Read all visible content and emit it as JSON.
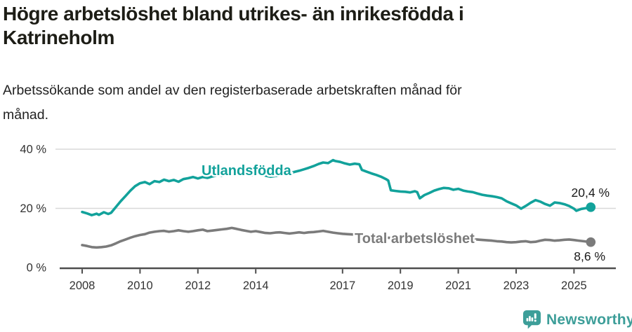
{
  "header": {
    "title": "Högre arbetslöshet bland utrikes- än inrikesfödda i\nKatrineholm",
    "subtitle": "Arbetssökande som andel av den registerbaserade arbetskraften månad för\nmånad."
  },
  "colors": {
    "accent_teal": "#12a29b",
    "line_gray": "#7b7b7b",
    "grid": "#d8d8d8",
    "axis": "#4d4d4d",
    "tick_text": "#333333",
    "value_text": "#1a1a1a",
    "brand_teal": "#3d9e99"
  },
  "branding": {
    "logo_text": "Newsworthy"
  },
  "chart_data": {
    "type": "line",
    "title": "Högre arbetslöshet bland utrikes- än inrikesfödda i Katrineholm",
    "subtitle": "Arbetssökande som andel av den registerbaserade arbetskraften månad för månad.",
    "xlabel": "",
    "ylabel": "",
    "grid": "horizontal-only",
    "legend_position": "inline-labels",
    "x_range": [
      2008,
      2025.58
    ],
    "ylim": [
      0,
      44
    ],
    "x_ticks": [
      2008,
      2010,
      2012,
      2014,
      2017,
      2019,
      2021,
      2023,
      2025
    ],
    "y_ticks": [
      {
        "value": 0,
        "label": "0 %"
      },
      {
        "value": 20,
        "label": "20 %"
      },
      {
        "value": 40,
        "label": "40 %"
      }
    ],
    "series": [
      {
        "name": "Utlandsfödda",
        "color": "#12a29b",
        "end_label": "20,4 %",
        "last_value": 20.4,
        "points": [
          [
            2008.0,
            18.8
          ],
          [
            2008.17,
            18.3
          ],
          [
            2008.33,
            17.7
          ],
          [
            2008.5,
            18.2
          ],
          [
            2008.58,
            17.8
          ],
          [
            2008.75,
            18.7
          ],
          [
            2008.9,
            18.1
          ],
          [
            2009.0,
            18.5
          ],
          [
            2009.17,
            20.5
          ],
          [
            2009.33,
            22.4
          ],
          [
            2009.5,
            24.2
          ],
          [
            2009.67,
            26.0
          ],
          [
            2009.83,
            27.5
          ],
          [
            2010.0,
            28.5
          ],
          [
            2010.17,
            28.9
          ],
          [
            2010.33,
            28.2
          ],
          [
            2010.5,
            29.2
          ],
          [
            2010.67,
            28.9
          ],
          [
            2010.83,
            29.7
          ],
          [
            2011.0,
            29.2
          ],
          [
            2011.17,
            29.6
          ],
          [
            2011.33,
            29.0
          ],
          [
            2011.5,
            29.9
          ],
          [
            2011.67,
            30.2
          ],
          [
            2011.83,
            30.6
          ],
          [
            2012.0,
            30.1
          ],
          [
            2012.17,
            30.6
          ],
          [
            2012.33,
            30.3
          ],
          [
            2012.5,
            30.8
          ],
          [
            2012.67,
            31.1
          ],
          [
            2012.83,
            31.0
          ],
          [
            2013.0,
            31.4
          ],
          [
            2013.17,
            31.8
          ],
          [
            2013.33,
            31.5
          ],
          [
            2013.5,
            31.8
          ],
          [
            2013.67,
            31.5
          ],
          [
            2013.83,
            31.2
          ],
          [
            2014.0,
            31.5
          ],
          [
            2014.17,
            31.8
          ],
          [
            2014.33,
            31.1
          ],
          [
            2014.5,
            30.7
          ],
          [
            2014.67,
            30.9
          ],
          [
            2014.83,
            31.1
          ],
          [
            2015.0,
            31.4
          ],
          [
            2015.17,
            31.9
          ],
          [
            2015.33,
            32.3
          ],
          [
            2015.5,
            32.7
          ],
          [
            2015.67,
            33.2
          ],
          [
            2015.83,
            33.7
          ],
          [
            2016.0,
            34.3
          ],
          [
            2016.17,
            35.0
          ],
          [
            2016.33,
            35.5
          ],
          [
            2016.5,
            35.3
          ],
          [
            2016.67,
            36.3
          ],
          [
            2016.75,
            36.0
          ],
          [
            2016.92,
            35.7
          ],
          [
            2017.08,
            35.2
          ],
          [
            2017.25,
            34.8
          ],
          [
            2017.42,
            35.1
          ],
          [
            2017.58,
            34.9
          ],
          [
            2017.67,
            33.0
          ],
          [
            2017.83,
            32.4
          ],
          [
            2018.0,
            31.8
          ],
          [
            2018.17,
            31.3
          ],
          [
            2018.33,
            30.7
          ],
          [
            2018.5,
            29.9
          ],
          [
            2018.58,
            29.4
          ],
          [
            2018.67,
            26.1
          ],
          [
            2018.83,
            25.9
          ],
          [
            2019.0,
            25.7
          ],
          [
            2019.17,
            25.6
          ],
          [
            2019.33,
            25.4
          ],
          [
            2019.5,
            25.8
          ],
          [
            2019.58,
            25.5
          ],
          [
            2019.67,
            23.4
          ],
          [
            2019.83,
            24.5
          ],
          [
            2020.0,
            25.2
          ],
          [
            2020.17,
            26.0
          ],
          [
            2020.33,
            26.5
          ],
          [
            2020.5,
            26.9
          ],
          [
            2020.67,
            26.8
          ],
          [
            2020.83,
            26.3
          ],
          [
            2021.0,
            26.6
          ],
          [
            2021.17,
            26.0
          ],
          [
            2021.33,
            25.7
          ],
          [
            2021.5,
            25.5
          ],
          [
            2021.67,
            25.0
          ],
          [
            2021.83,
            24.6
          ],
          [
            2022.0,
            24.3
          ],
          [
            2022.17,
            24.1
          ],
          [
            2022.33,
            23.8
          ],
          [
            2022.5,
            23.4
          ],
          [
            2022.67,
            22.4
          ],
          [
            2022.83,
            21.7
          ],
          [
            2023.0,
            21.0
          ],
          [
            2023.17,
            19.9
          ],
          [
            2023.33,
            20.8
          ],
          [
            2023.5,
            21.9
          ],
          [
            2023.67,
            22.8
          ],
          [
            2023.83,
            22.3
          ],
          [
            2024.0,
            21.5
          ],
          [
            2024.17,
            20.9
          ],
          [
            2024.33,
            22.0
          ],
          [
            2024.5,
            21.8
          ],
          [
            2024.67,
            21.4
          ],
          [
            2024.83,
            20.8
          ],
          [
            2025.0,
            19.9
          ],
          [
            2025.08,
            19.2
          ],
          [
            2025.25,
            19.8
          ],
          [
            2025.42,
            20.1
          ],
          [
            2025.58,
            20.4
          ]
        ]
      },
      {
        "name": "Total arbetslöshet",
        "color": "#7b7b7b",
        "end_label": "8,6 %",
        "last_value": 8.6,
        "points": [
          [
            2008.0,
            7.6
          ],
          [
            2008.17,
            7.3
          ],
          [
            2008.33,
            6.9
          ],
          [
            2008.5,
            6.8
          ],
          [
            2008.67,
            6.9
          ],
          [
            2008.83,
            7.1
          ],
          [
            2009.0,
            7.5
          ],
          [
            2009.17,
            8.2
          ],
          [
            2009.33,
            8.9
          ],
          [
            2009.5,
            9.5
          ],
          [
            2009.67,
            10.1
          ],
          [
            2009.83,
            10.6
          ],
          [
            2010.0,
            11.0
          ],
          [
            2010.17,
            11.3
          ],
          [
            2010.33,
            11.8
          ],
          [
            2010.5,
            12.1
          ],
          [
            2010.67,
            12.3
          ],
          [
            2010.83,
            12.4
          ],
          [
            2011.0,
            12.1
          ],
          [
            2011.17,
            12.3
          ],
          [
            2011.33,
            12.6
          ],
          [
            2011.5,
            12.3
          ],
          [
            2011.67,
            12.1
          ],
          [
            2011.83,
            12.3
          ],
          [
            2012.0,
            12.6
          ],
          [
            2012.17,
            12.8
          ],
          [
            2012.33,
            12.3
          ],
          [
            2012.5,
            12.5
          ],
          [
            2012.67,
            12.7
          ],
          [
            2012.83,
            12.9
          ],
          [
            2013.0,
            13.1
          ],
          [
            2013.17,
            13.4
          ],
          [
            2013.33,
            13.1
          ],
          [
            2013.5,
            12.7
          ],
          [
            2013.67,
            12.4
          ],
          [
            2013.83,
            12.1
          ],
          [
            2014.0,
            12.3
          ],
          [
            2014.17,
            12.0
          ],
          [
            2014.33,
            11.7
          ],
          [
            2014.5,
            11.6
          ],
          [
            2014.67,
            11.8
          ],
          [
            2014.83,
            11.9
          ],
          [
            2015.0,
            11.7
          ],
          [
            2015.17,
            11.5
          ],
          [
            2015.33,
            11.7
          ],
          [
            2015.5,
            11.9
          ],
          [
            2015.67,
            11.7
          ],
          [
            2015.83,
            11.9
          ],
          [
            2016.0,
            12.0
          ],
          [
            2016.17,
            12.2
          ],
          [
            2016.33,
            12.4
          ],
          [
            2016.5,
            12.1
          ],
          [
            2016.67,
            11.8
          ],
          [
            2016.83,
            11.6
          ],
          [
            2017.0,
            11.4
          ],
          [
            2017.17,
            11.3
          ],
          [
            2017.33,
            11.2
          ],
          [
            2017.5,
            11.0
          ],
          [
            2017.67,
            10.8
          ],
          [
            2017.83,
            10.7
          ],
          [
            2018.0,
            10.5
          ],
          [
            2018.25,
            10.2
          ],
          [
            2018.5,
            10.1
          ],
          [
            2018.75,
            10.0
          ],
          [
            2019.0,
            9.9
          ],
          [
            2019.25,
            9.7
          ],
          [
            2019.5,
            9.6
          ],
          [
            2019.75,
            9.7
          ],
          [
            2020.0,
            9.9
          ],
          [
            2020.25,
            10.2
          ],
          [
            2020.5,
            10.5
          ],
          [
            2020.75,
            10.3
          ],
          [
            2021.0,
            10.0
          ],
          [
            2021.25,
            9.8
          ],
          [
            2021.5,
            9.6
          ],
          [
            2021.75,
            9.4
          ],
          [
            2022.0,
            9.2
          ],
          [
            2022.17,
            9.1
          ],
          [
            2022.33,
            8.9
          ],
          [
            2022.5,
            8.8
          ],
          [
            2022.67,
            8.6
          ],
          [
            2022.83,
            8.5
          ],
          [
            2023.0,
            8.6
          ],
          [
            2023.17,
            8.8
          ],
          [
            2023.33,
            8.9
          ],
          [
            2023.5,
            8.6
          ],
          [
            2023.67,
            8.7
          ],
          [
            2023.83,
            9.1
          ],
          [
            2024.0,
            9.4
          ],
          [
            2024.17,
            9.3
          ],
          [
            2024.33,
            9.1
          ],
          [
            2024.5,
            9.2
          ],
          [
            2024.67,
            9.4
          ],
          [
            2024.83,
            9.5
          ],
          [
            2025.0,
            9.3
          ],
          [
            2025.17,
            9.1
          ],
          [
            2025.33,
            8.9
          ],
          [
            2025.58,
            8.6
          ]
        ]
      }
    ]
  }
}
